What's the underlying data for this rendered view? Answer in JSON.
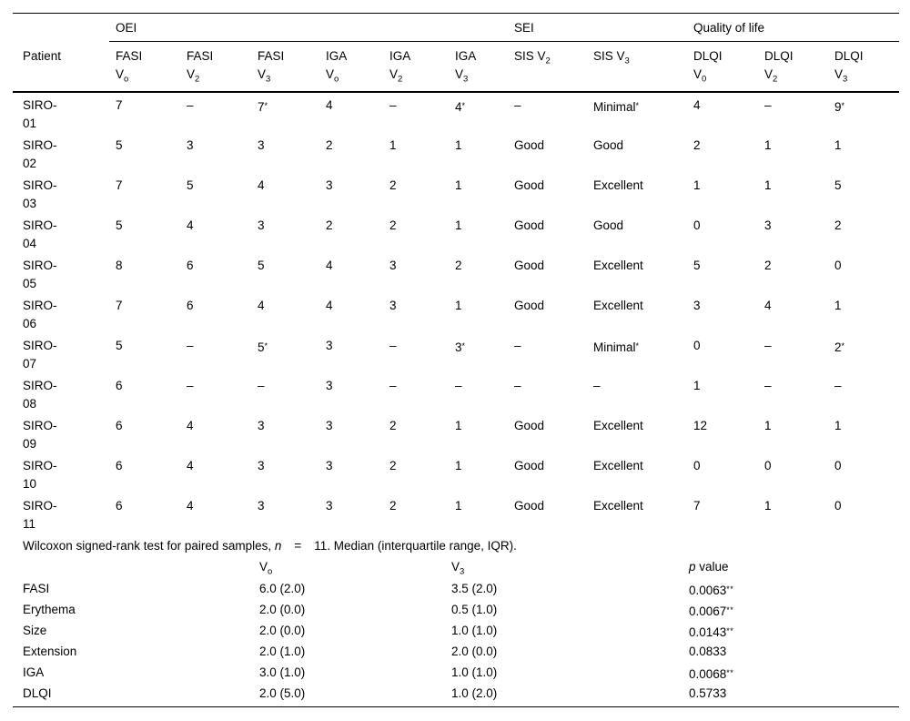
{
  "table": {
    "groups": [
      {
        "label": "OEI"
      },
      {
        "label": "SEI"
      },
      {
        "label": "Quality of life"
      }
    ],
    "columns": [
      {
        "label": "Patient"
      },
      {
        "name": "FASI",
        "v": "V",
        "sub": "o",
        "two_line": true
      },
      {
        "name": "FASI",
        "v": "V",
        "sub": "2",
        "two_line": true
      },
      {
        "name": "FASI",
        "v": "V",
        "sub": "3",
        "two_line": true
      },
      {
        "name": "IGA",
        "v": "V",
        "sub": "o",
        "two_line": true
      },
      {
        "name": "IGA",
        "v": "V",
        "sub": "2",
        "two_line": true
      },
      {
        "name": "IGA",
        "v": "V",
        "sub": "3",
        "two_line": true
      },
      {
        "name": "SIS",
        "v": "V",
        "sub": "2",
        "two_line": false
      },
      {
        "name": "SIS",
        "v": "V",
        "sub": "3",
        "two_line": false
      },
      {
        "name": "DLQI",
        "v": "V",
        "sub": "0",
        "two_line": true
      },
      {
        "name": "DLQI",
        "v": "V",
        "sub": "2",
        "two_line": true
      },
      {
        "name": "DLQI",
        "v": "V",
        "sub": "3",
        "two_line": true
      }
    ],
    "rows": [
      {
        "id_line1": "SIRO-",
        "id_line2": "01",
        "values": [
          "7",
          "–",
          "7*",
          "4",
          "–",
          "4*",
          "–",
          "Minimal*",
          "4",
          "–",
          "9*"
        ]
      },
      {
        "id_line1": "SIRO-",
        "id_line2": "02",
        "values": [
          "5",
          "3",
          "3",
          "2",
          "1",
          "1",
          "Good",
          "Good",
          "2",
          "1",
          "1"
        ]
      },
      {
        "id_line1": "SIRO-",
        "id_line2": "03",
        "values": [
          "7",
          "5",
          "4",
          "3",
          "2",
          "1",
          "Good",
          "Excellent",
          "1",
          "1",
          "5"
        ]
      },
      {
        "id_line1": "SIRO-",
        "id_line2": "04",
        "values": [
          "5",
          "4",
          "3",
          "2",
          "2",
          "1",
          "Good",
          "Good",
          "0",
          "3",
          "2"
        ]
      },
      {
        "id_line1": "SIRO-",
        "id_line2": "05",
        "values": [
          "8",
          "6",
          "5",
          "4",
          "3",
          "2",
          "Good",
          "Excellent",
          "5",
          "2",
          "0"
        ]
      },
      {
        "id_line1": "SIRO-",
        "id_line2": "06",
        "values": [
          "7",
          "6",
          "4",
          "4",
          "3",
          "1",
          "Good",
          "Excellent",
          "3",
          "4",
          "1"
        ]
      },
      {
        "id_line1": "SIRO-",
        "id_line2": "07",
        "values": [
          "5",
          "–",
          "5*",
          "3",
          "–",
          "3*",
          "–",
          "Minimal*",
          "0",
          "–",
          "2*"
        ]
      },
      {
        "id_line1": "SIRO-",
        "id_line2": "08",
        "values": [
          "6",
          "–",
          "–",
          "3",
          "–",
          "–",
          "–",
          "–",
          "1",
          "–",
          "–"
        ]
      },
      {
        "id_line1": "SIRO-",
        "id_line2": "09",
        "values": [
          "6",
          "4",
          "3",
          "3",
          "2",
          "1",
          "Good",
          "Excellent",
          "12",
          "1",
          "1"
        ]
      },
      {
        "id_line1": "SIRO-",
        "id_line2": "10",
        "values": [
          "6",
          "4",
          "3",
          "3",
          "2",
          "1",
          "Good",
          "Excellent",
          "0",
          "0",
          "0"
        ]
      },
      {
        "id_line1": "SIRO-",
        "id_line2": "11",
        "values": [
          "6",
          "4",
          "3",
          "3",
          "2",
          "1",
          "Good",
          "Excellent",
          "7",
          "1",
          "0"
        ]
      }
    ]
  },
  "note": {
    "prefix": "Wilcoxon signed-rank test for paired samples, ",
    "n_var": "n",
    "eq": "=",
    "rest": "11. Median (interquartile range, IQR)."
  },
  "summary": {
    "v0_base": "V",
    "v0_sub": "o",
    "v3_base": "V",
    "v3_sub": "3",
    "p_var": "p",
    "p_rest": " value",
    "rows": [
      {
        "label": "FASI",
        "v0": "6.0 (2.0)",
        "v3": "3.5 (2.0)",
        "p": "0.0063**"
      },
      {
        "label": "Erythema",
        "v0": "2.0 (0.0)",
        "v3": "0.5 (1.0)",
        "p": "0.0067**"
      },
      {
        "label": "Size",
        "v0": "2.0 (0.0)",
        "v3": "1.0 (1.0)",
        "p": "0.0143**"
      },
      {
        "label": "Extension",
        "v0": "2.0 (1.0)",
        "v3": "2.0 (0.0)",
        "p": "0.0833"
      },
      {
        "label": "IGA",
        "v0": "3.0 (1.0)",
        "v3": "1.0 (1.0)",
        "p": "0.0068**"
      },
      {
        "label": "DLQI",
        "v0": "2.0 (5.0)",
        "v3": "1.0 (2.0)",
        "p": "0.5733"
      }
    ]
  }
}
